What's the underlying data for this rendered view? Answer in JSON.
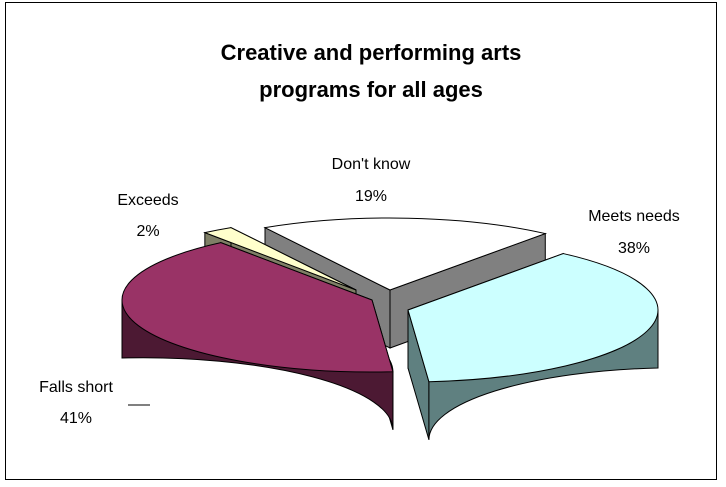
{
  "chart_data": {
    "type": "pie",
    "title_lines": [
      "Creative and performing arts",
      "programs for all ages"
    ],
    "categories": [
      "Don't know",
      "Meets needs",
      "Falls short",
      "Exceeds"
    ],
    "values": [
      19,
      38,
      41,
      2
    ],
    "value_labels": [
      "19%",
      "38%",
      "41%",
      "2%"
    ],
    "colors": {
      "Don't know": {
        "top": "#ffffff",
        "side": "#808080"
      },
      "Meets needs": {
        "top": "#ccffff",
        "side": "#5f8080"
      },
      "Falls short": {
        "top": "#993366",
        "side": "#4c1933"
      },
      "Exceeds": {
        "top": "#ffffcc",
        "side": "#7f7f66"
      }
    },
    "exploded": true,
    "three_d": true,
    "legend": "none"
  }
}
